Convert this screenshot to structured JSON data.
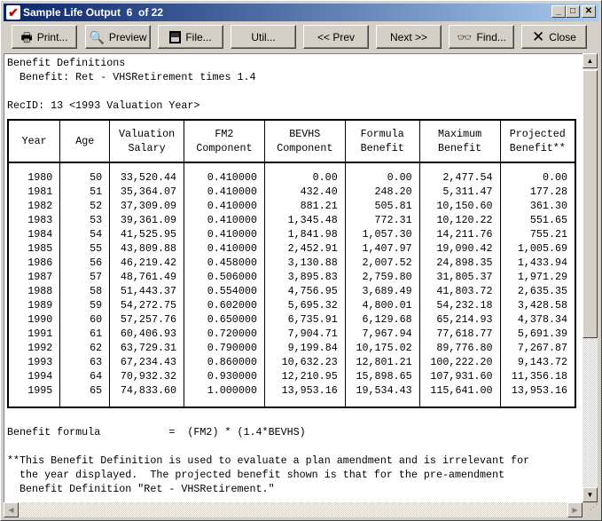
{
  "window": {
    "title": "Sample Life Output  6  of 22"
  },
  "toolbar": {
    "print": "Print...",
    "preview": "Preview",
    "file": "File...",
    "util": "Util...",
    "prev": "<< Prev",
    "next": "Next >>",
    "find": "Find...",
    "close": "Close"
  },
  "report": {
    "heading": "Benefit Definitions",
    "benefit": "  Benefit: Ret - VHSRetirement times 1.4",
    "recid": "RecID: 13 <1993 Valuation Year>",
    "columns": [
      [
        "Year"
      ],
      [
        "Age"
      ],
      [
        "Valuation",
        "Salary"
      ],
      [
        "FM2",
        "Component"
      ],
      [
        "BEVHS",
        "Component"
      ],
      [
        "Formula",
        "Benefit"
      ],
      [
        "Maximum",
        "Benefit"
      ],
      [
        "Projected",
        "Benefit**"
      ]
    ],
    "rows": [
      [
        "1980",
        "50",
        "33,520.44",
        "0.410000",
        "0.00",
        "0.00",
        "2,477.54",
        "0.00"
      ],
      [
        "1981",
        "51",
        "35,364.07",
        "0.410000",
        "432.40",
        "248.20",
        "5,311.47",
        "177.28"
      ],
      [
        "1982",
        "52",
        "37,309.09",
        "0.410000",
        "881.21",
        "505.81",
        "10,150.60",
        "361.30"
      ],
      [
        "1983",
        "53",
        "39,361.09",
        "0.410000",
        "1,345.48",
        "772.31",
        "10,120.22",
        "551.65"
      ],
      [
        "1984",
        "54",
        "41,525.95",
        "0.410000",
        "1,841.98",
        "1,057.30",
        "14,211.76",
        "755.21"
      ],
      [
        "1985",
        "55",
        "43,809.88",
        "0.410000",
        "2,452.91",
        "1,407.97",
        "19,090.42",
        "1,005.69"
      ],
      [
        "1986",
        "56",
        "46,219.42",
        "0.458000",
        "3,130.88",
        "2,007.52",
        "24,898.35",
        "1,433.94"
      ],
      [
        "1987",
        "57",
        "48,761.49",
        "0.506000",
        "3,895.83",
        "2,759.80",
        "31,805.37",
        "1,971.29"
      ],
      [
        "1988",
        "58",
        "51,443.37",
        "0.554000",
        "4,756.95",
        "3,689.49",
        "41,803.72",
        "2,635.35"
      ],
      [
        "1989",
        "59",
        "54,272.75",
        "0.602000",
        "5,695.32",
        "4,800.01",
        "54,232.18",
        "3,428.58"
      ],
      [
        "1990",
        "60",
        "57,257.76",
        "0.650000",
        "6,735.91",
        "6,129.68",
        "65,214.93",
        "4,378.34"
      ],
      [
        "1991",
        "61",
        "60,406.93",
        "0.720000",
        "7,904.71",
        "7,967.94",
        "77,618.77",
        "5,691.39"
      ],
      [
        "1992",
        "62",
        "63,729.31",
        "0.790000",
        "9,199.84",
        "10,175.02",
        "89,776.80",
        "7,267.87"
      ],
      [
        "1993",
        "63",
        "67,234.43",
        "0.860000",
        "10,632.23",
        "12,801.21",
        "100,222.20",
        "9,143.72"
      ],
      [
        "1994",
        "64",
        "70,932.32",
        "0.930000",
        "12,210.95",
        "15,898.65",
        "107,931.60",
        "11,356.18"
      ],
      [
        "1995",
        "65",
        "74,833.60",
        "1.000000",
        "13,953.16",
        "19,534.43",
        "115,641.00",
        "13,953.16"
      ]
    ],
    "formula": "Benefit formula           =  (FM2) * (1.4*BEVHS)",
    "note": [
      "**This Benefit Definition is used to evaluate a plan amendment and is irrelevant for",
      "  the year displayed.  The projected benefit shown is that for the pre-amendment",
      "  Benefit Definition \"Ret - VHSRetirement.\""
    ]
  }
}
